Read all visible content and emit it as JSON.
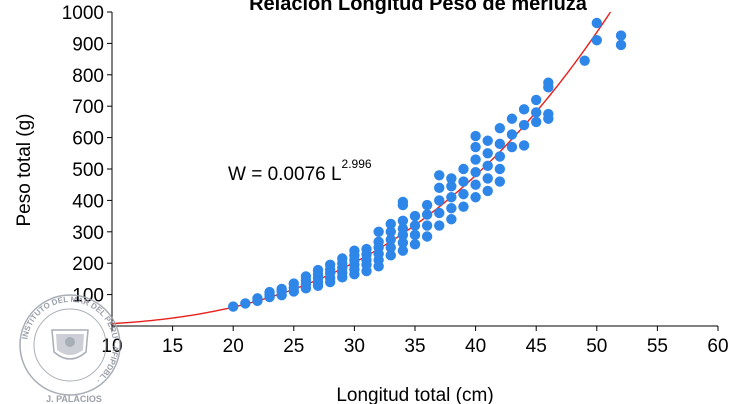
{
  "chart_data": {
    "type": "scatter",
    "title": "Relación Longitud Peso de merluza",
    "xlabel": "Longitud total (cm)",
    "ylabel": "Peso total (g)",
    "xlim": [
      10,
      60
    ],
    "ylim": [
      0,
      1000
    ],
    "xticks": [
      "10",
      "15",
      "20",
      "25",
      "30",
      "35",
      "40",
      "45",
      "50",
      "55",
      "60"
    ],
    "yticks": [
      "100",
      "200",
      "300",
      "400",
      "500",
      "600",
      "700",
      "800",
      "900",
      "1000"
    ],
    "grid": false,
    "legend": "none",
    "marker_color": "#2e86e8",
    "curve_color": "#e8201b",
    "annotation": {
      "prefix": "W = 0.0076 L",
      "exponent": "2.996"
    },
    "fit": {
      "a": 0.0076,
      "b": 2.996
    },
    "points": [
      [
        20,
        62
      ],
      [
        21,
        72
      ],
      [
        22,
        80
      ],
      [
        22,
        88
      ],
      [
        23,
        92
      ],
      [
        23,
        100
      ],
      [
        23,
        108
      ],
      [
        24,
        98
      ],
      [
        24,
        110
      ],
      [
        24,
        118
      ],
      [
        25,
        110
      ],
      [
        25,
        122
      ],
      [
        25,
        135
      ],
      [
        26,
        120
      ],
      [
        26,
        132
      ],
      [
        26,
        145
      ],
      [
        26,
        158
      ],
      [
        27,
        128
      ],
      [
        27,
        140
      ],
      [
        27,
        152
      ],
      [
        27,
        165
      ],
      [
        27,
        178
      ],
      [
        28,
        140
      ],
      [
        28,
        152
      ],
      [
        28,
        168
      ],
      [
        28,
        180
      ],
      [
        28,
        195
      ],
      [
        29,
        155
      ],
      [
        29,
        170
      ],
      [
        29,
        185
      ],
      [
        29,
        200
      ],
      [
        29,
        215
      ],
      [
        30,
        165
      ],
      [
        30,
        180
      ],
      [
        30,
        195
      ],
      [
        30,
        210
      ],
      [
        30,
        225
      ],
      [
        30,
        240
      ],
      [
        31,
        175
      ],
      [
        31,
        195
      ],
      [
        31,
        210
      ],
      [
        31,
        228
      ],
      [
        31,
        245
      ],
      [
        32,
        190
      ],
      [
        32,
        210
      ],
      [
        32,
        230
      ],
      [
        32,
        250
      ],
      [
        32,
        268
      ],
      [
        32,
        300
      ],
      [
        33,
        225
      ],
      [
        33,
        250
      ],
      [
        33,
        275
      ],
      [
        33,
        300
      ],
      [
        33,
        325
      ],
      [
        34,
        240
      ],
      [
        34,
        265
      ],
      [
        34,
        290
      ],
      [
        34,
        310
      ],
      [
        34,
        335
      ],
      [
        34,
        385
      ],
      [
        34,
        395
      ],
      [
        35,
        260
      ],
      [
        35,
        290
      ],
      [
        35,
        320
      ],
      [
        35,
        350
      ],
      [
        36,
        285
      ],
      [
        36,
        320
      ],
      [
        36,
        355
      ],
      [
        36,
        385
      ],
      [
        37,
        320
      ],
      [
        37,
        360
      ],
      [
        37,
        400
      ],
      [
        37,
        440
      ],
      [
        37,
        480
      ],
      [
        38,
        340
      ],
      [
        38,
        375
      ],
      [
        38,
        410
      ],
      [
        38,
        445
      ],
      [
        38,
        470
      ],
      [
        39,
        380
      ],
      [
        39,
        420
      ],
      [
        39,
        460
      ],
      [
        39,
        500
      ],
      [
        40,
        410
      ],
      [
        40,
        450
      ],
      [
        40,
        490
      ],
      [
        40,
        530
      ],
      [
        40,
        570
      ],
      [
        40,
        605
      ],
      [
        41,
        430
      ],
      [
        41,
        470
      ],
      [
        41,
        510
      ],
      [
        41,
        550
      ],
      [
        41,
        590
      ],
      [
        42,
        460
      ],
      [
        42,
        500
      ],
      [
        42,
        540
      ],
      [
        42,
        580
      ],
      [
        42,
        630
      ],
      [
        43,
        570
      ],
      [
        43,
        610
      ],
      [
        43,
        660
      ],
      [
        44,
        575
      ],
      [
        44,
        640
      ],
      [
        44,
        690
      ],
      [
        45,
        650
      ],
      [
        45,
        680
      ],
      [
        45,
        720
      ],
      [
        46,
        660
      ],
      [
        46,
        675
      ],
      [
        46,
        760
      ],
      [
        46,
        775
      ],
      [
        49,
        845
      ],
      [
        50,
        910
      ],
      [
        50,
        965
      ],
      [
        52,
        895
      ],
      [
        52,
        925
      ]
    ]
  },
  "stamp": {
    "ring_text": "INSTITUTO DEL MAR DEL PERU · AFIPDBL ·",
    "signature": "J. PALACIOS"
  }
}
